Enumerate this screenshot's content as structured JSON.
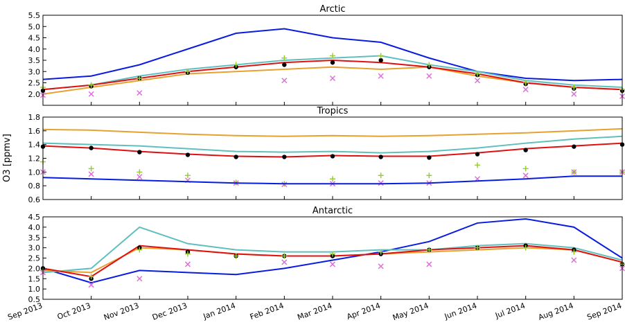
{
  "ylabel": "O3 [ppmv]",
  "chart_data": [
    {
      "type": "line",
      "title": "Arctic",
      "x": [
        "Sep 2013",
        "Oct 2013",
        "Nov 2013",
        "Dec 2013",
        "Jan 2014",
        "Feb 2014",
        "Mar 2014",
        "Apr 2014",
        "May 2014",
        "Jun 2014",
        "Jul 2014",
        "Aug 2014",
        "Sep 2014"
      ],
      "ylim": [
        1.5,
        5.5
      ],
      "yticks": [
        {
          "value": 2,
          "label": "2.0"
        },
        2.5,
        {
          "value": 3,
          "label": "3.0"
        },
        3.5,
        {
          "value": 4,
          "label": "4.0"
        },
        4.5,
        {
          "value": 5,
          "label": "5.0"
        },
        5.5
      ],
      "series": [
        {
          "color": "#0a1be0",
          "marker": "line",
          "values": [
            2.65,
            2.8,
            3.3,
            4.0,
            4.7,
            4.9,
            4.5,
            4.3,
            3.6,
            3.0,
            2.7,
            2.6,
            2.65
          ]
        },
        {
          "color": "#5fbfbf",
          "marker": "line",
          "values": [
            2.2,
            2.4,
            2.8,
            3.1,
            3.3,
            3.5,
            3.6,
            3.7,
            3.3,
            3.0,
            2.6,
            2.4,
            2.3
          ]
        },
        {
          "color": "#e8a030",
          "marker": "line",
          "values": [
            2.0,
            2.3,
            2.6,
            2.9,
            3.0,
            3.1,
            3.2,
            3.1,
            3.2,
            2.8,
            2.5,
            2.3,
            2.2
          ]
        },
        {
          "color": "#e01010",
          "marker": "line",
          "values": [
            2.2,
            2.4,
            2.7,
            3.0,
            3.2,
            3.4,
            3.5,
            3.4,
            3.2,
            2.9,
            2.5,
            2.3,
            2.2
          ]
        },
        {
          "color": "#000000",
          "marker": "dot",
          "values": [
            2.15,
            2.35,
            2.7,
            2.95,
            3.2,
            3.3,
            3.4,
            3.5,
            3.2,
            2.85,
            2.45,
            2.25,
            2.15
          ]
        },
        {
          "color": "#9acd32",
          "marker": "plus",
          "values": [
            2.3,
            2.4,
            2.7,
            3.0,
            3.3,
            3.6,
            3.7,
            3.7,
            3.3,
            2.9,
            2.5,
            2.3,
            2.2
          ]
        },
        {
          "color": "#da70d6",
          "marker": "cross",
          "values": [
            1.95,
            2.0,
            2.05,
            null,
            null,
            2.6,
            2.7,
            2.8,
            2.8,
            2.6,
            2.2,
            2.0,
            1.9
          ]
        }
      ]
    },
    {
      "type": "line",
      "title": "Tropics",
      "x": [
        "Sep 2013",
        "Oct 2013",
        "Nov 2013",
        "Dec 2013",
        "Jan 2014",
        "Feb 2014",
        "Mar 2014",
        "Apr 2014",
        "May 2014",
        "Jun 2014",
        "Jul 2014",
        "Aug 2014",
        "Sep 2014"
      ],
      "ylim": [
        0.6,
        1.8
      ],
      "yticks": [
        0.6,
        0.8,
        {
          "value": 1,
          "label": "1.0"
        },
        1.2,
        1.4,
        1.6,
        1.8
      ],
      "series": [
        {
          "color": "#e8a030",
          "marker": "line",
          "values": [
            1.62,
            1.61,
            1.58,
            1.55,
            1.53,
            1.52,
            1.53,
            1.52,
            1.53,
            1.55,
            1.57,
            1.6,
            1.63
          ]
        },
        {
          "color": "#5fbfbf",
          "marker": "line",
          "values": [
            1.42,
            1.4,
            1.38,
            1.34,
            1.3,
            1.29,
            1.3,
            1.28,
            1.3,
            1.35,
            1.42,
            1.48,
            1.52
          ]
        },
        {
          "color": "#e01010",
          "marker": "line",
          "values": [
            1.38,
            1.35,
            1.3,
            1.26,
            1.23,
            1.22,
            1.24,
            1.23,
            1.23,
            1.28,
            1.34,
            1.38,
            1.42
          ]
        },
        {
          "color": "#000000",
          "marker": "dot",
          "values": [
            1.37,
            1.35,
            1.29,
            1.25,
            1.22,
            1.22,
            1.23,
            1.22,
            1.21,
            1.26,
            1.32,
            1.37,
            1.4
          ]
        },
        {
          "color": "#9acd32",
          "marker": "plus",
          "values": [
            1.15,
            1.05,
            1.0,
            0.95,
            0.85,
            0.83,
            0.9,
            0.95,
            0.95,
            1.1,
            1.05,
            1.0,
            1.0
          ]
        },
        {
          "color": "#da70d6",
          "marker": "cross",
          "values": [
            1.0,
            0.97,
            0.93,
            0.88,
            0.84,
            0.82,
            0.83,
            0.84,
            0.84,
            0.9,
            0.95,
            1.0,
            1.0
          ]
        },
        {
          "color": "#0a1be0",
          "marker": "line",
          "values": [
            0.92,
            0.9,
            0.88,
            0.86,
            0.84,
            0.83,
            0.83,
            0.83,
            0.84,
            0.87,
            0.9,
            0.94,
            0.94
          ]
        }
      ]
    },
    {
      "type": "line",
      "title": "Antarctic",
      "x": [
        "Sep 2013",
        "Oct 2013",
        "Nov 2013",
        "Dec 2013",
        "Jan 2014",
        "Feb 2014",
        "Mar 2014",
        "Apr 2014",
        "May 2014",
        "Jun 2014",
        "Jul 2014",
        "Aug 2014",
        "Sep 2014"
      ],
      "ylim": [
        0.5,
        4.5
      ],
      "yticks": [
        0.5,
        {
          "value": 1,
          "label": "1.0"
        },
        1.5,
        {
          "value": 2,
          "label": "2.0"
        },
        2.5,
        {
          "value": 3,
          "label": "3.0"
        },
        3.5,
        {
          "value": 4,
          "label": "4.0"
        },
        4.5
      ],
      "series": [
        {
          "color": "#0a1be0",
          "marker": "line",
          "values": [
            2.0,
            1.3,
            1.9,
            1.8,
            1.7,
            2.0,
            2.4,
            2.8,
            3.3,
            4.2,
            4.4,
            4.0,
            2.5
          ]
        },
        {
          "color": "#5fbfbf",
          "marker": "line",
          "values": [
            1.8,
            2.0,
            4.0,
            3.2,
            2.9,
            2.8,
            2.8,
            2.9,
            2.9,
            3.1,
            3.2,
            3.0,
            2.4
          ]
        },
        {
          "color": "#e8a030",
          "marker": "line",
          "values": [
            1.9,
            1.8,
            3.0,
            2.9,
            2.7,
            2.6,
            2.6,
            2.7,
            2.8,
            2.9,
            3.0,
            2.9,
            2.3
          ]
        },
        {
          "color": "#e01010",
          "marker": "line",
          "values": [
            2.0,
            1.6,
            3.1,
            2.9,
            2.7,
            2.6,
            2.6,
            2.7,
            2.9,
            3.0,
            3.1,
            2.9,
            2.3
          ]
        },
        {
          "color": "#000000",
          "marker": "dot",
          "values": [
            2.0,
            1.5,
            3.0,
            2.8,
            2.6,
            2.6,
            2.6,
            2.7,
            2.9,
            3.0,
            3.1,
            2.9,
            2.2
          ]
        },
        {
          "color": "#9acd32",
          "marker": "plus",
          "values": [
            1.9,
            1.6,
            2.9,
            2.7,
            2.6,
            2.6,
            2.7,
            2.8,
            2.9,
            3.0,
            3.0,
            2.8,
            2.2
          ]
        },
        {
          "color": "#da70d6",
          "marker": "cross",
          "values": [
            1.8,
            1.2,
            1.5,
            2.2,
            null,
            2.3,
            2.2,
            2.1,
            2.2,
            null,
            null,
            2.4,
            2.0
          ]
        }
      ]
    }
  ]
}
